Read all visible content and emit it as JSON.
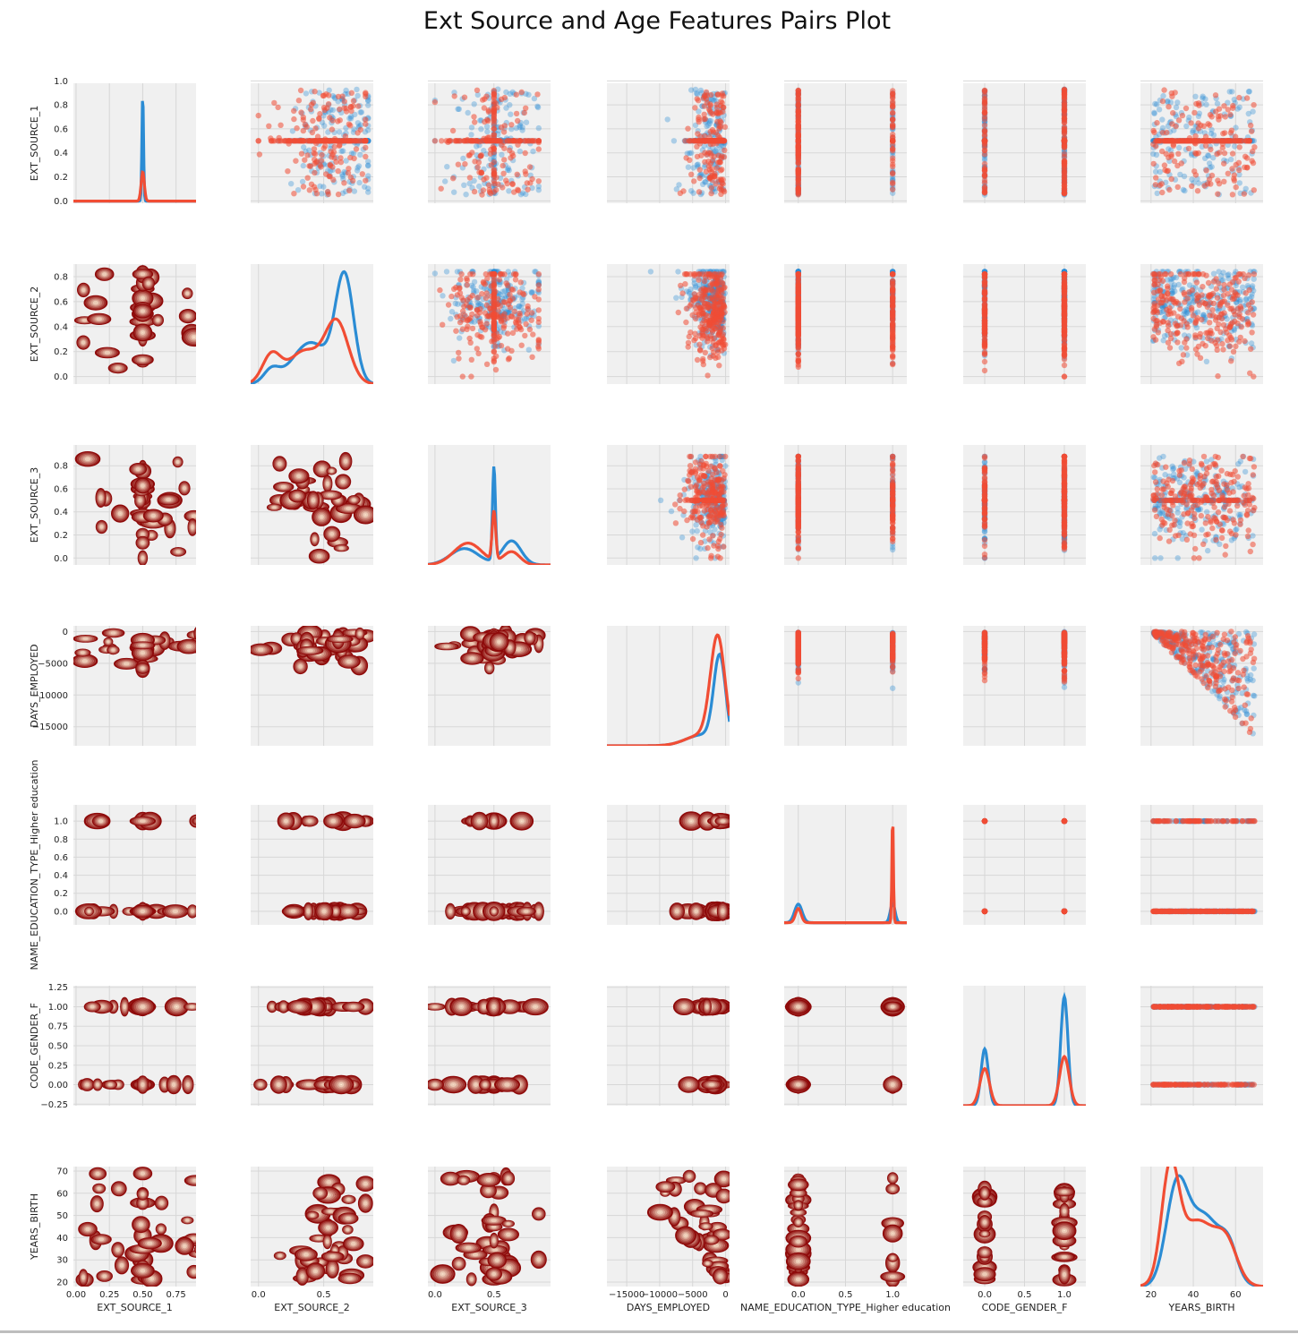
{
  "chart_data": {
    "type": "pairplot",
    "title": "Ext Source and Age Features Pairs Plot",
    "variables": [
      "EXT_SOURCE_1",
      "EXT_SOURCE_2",
      "EXT_SOURCE_3",
      "DAYS_EMPLOYED",
      "NAME_EDUCATION_TYPE_Higher education",
      "CODE_GENDER_F",
      "YEARS_BIRTH"
    ],
    "upper": "scatter",
    "diagonal": "kde",
    "lower": "kde-contour",
    "grid": true,
    "colors": {
      "series_a": "#2b8cd4",
      "series_b": "#f14d34",
      "contour_outer": "#8e0a0a",
      "contour_inner": "#fff1d8",
      "panel_bg": "#f0f0f0",
      "grid": "#d7d7d7"
    },
    "axes": {
      "EXT_SOURCE_1": {
        "range": [
          -0.02,
          0.98
        ],
        "row_ticks": [
          0.0,
          0.2,
          0.4,
          0.6,
          0.8,
          1.0
        ],
        "row_tick_labels": [
          "0.0",
          "0.2",
          "0.4",
          "0.6",
          "0.8",
          "1.0"
        ],
        "col_range": [
          -0.02,
          0.9
        ],
        "col_ticks": [
          0.0,
          0.25,
          0.5,
          0.75
        ],
        "col_tick_labels": [
          "0.00",
          "0.25",
          "0.50",
          "0.75"
        ]
      },
      "EXT_SOURCE_2": {
        "range": [
          -0.06,
          0.9
        ],
        "row_ticks": [
          0.0,
          0.2,
          0.4,
          0.6,
          0.8
        ],
        "row_tick_labels": [
          "0.0",
          "0.2",
          "0.4",
          "0.6",
          "0.8"
        ],
        "col_range": [
          -0.06,
          0.88
        ],
        "col_ticks": [
          0.0,
          0.5
        ],
        "col_tick_labels": [
          "0.0",
          "0.5"
        ]
      },
      "EXT_SOURCE_3": {
        "range": [
          -0.06,
          0.98
        ],
        "row_ticks": [
          0.0,
          0.2,
          0.4,
          0.6,
          0.8
        ],
        "row_tick_labels": [
          "0.0",
          "0.2",
          "0.4",
          "0.6",
          "0.8"
        ],
        "col_range": [
          -0.06,
          0.98
        ],
        "col_ticks": [
          0.0,
          0.5
        ],
        "col_tick_labels": [
          "0.0",
          "0.5"
        ]
      },
      "DAYS_EMPLOYED": {
        "range": [
          -18000,
          900
        ],
        "row_ticks": [
          0,
          -5000,
          -10000,
          -15000
        ],
        "row_tick_labels": [
          "0",
          "−5000",
          "−10000",
          "−15000"
        ],
        "col_range": [
          -18000,
          600
        ],
        "col_ticks": [
          -15000,
          -10000,
          -5000,
          0
        ],
        "col_tick_labels": [
          "−15000",
          "−10000",
          "−5000",
          "0"
        ]
      },
      "NAME_EDUCATION_TYPE_Higher education": {
        "range": [
          -0.15,
          1.18
        ],
        "row_ticks": [
          0.0,
          0.2,
          0.4,
          0.6,
          0.8,
          1.0
        ],
        "row_tick_labels": [
          "0.0",
          "0.2",
          "0.4",
          "0.6",
          "0.8",
          "1.0"
        ],
        "col_range": [
          -0.15,
          1.15
        ],
        "col_ticks": [
          0.0,
          0.5,
          1.0
        ],
        "col_tick_labels": [
          "0.0",
          "0.5",
          "1.0"
        ]
      },
      "CODE_GENDER_F": {
        "range": [
          -0.27,
          1.27
        ],
        "row_ticks": [
          -0.25,
          0.0,
          0.25,
          0.5,
          0.75,
          1.0,
          1.25
        ],
        "row_tick_labels": [
          "−0.25",
          "0.00",
          "0.25",
          "0.50",
          "0.75",
          "1.00",
          "1.25"
        ],
        "col_range": [
          -0.27,
          1.27
        ],
        "col_ticks": [
          0.0,
          0.5,
          1.0
        ],
        "col_tick_labels": [
          "0.0",
          "0.5",
          "1.0"
        ]
      },
      "YEARS_BIRTH": {
        "range": [
          18,
          72
        ],
        "row_ticks": [
          20,
          30,
          40,
          50,
          60,
          70
        ],
        "row_tick_labels": [
          "20",
          "30",
          "40",
          "50",
          "60",
          "70"
        ],
        "col_range": [
          15,
          73
        ],
        "col_ticks": [
          20,
          40,
          60
        ],
        "col_tick_labels": [
          "20",
          "40",
          "60"
        ]
      }
    }
  }
}
